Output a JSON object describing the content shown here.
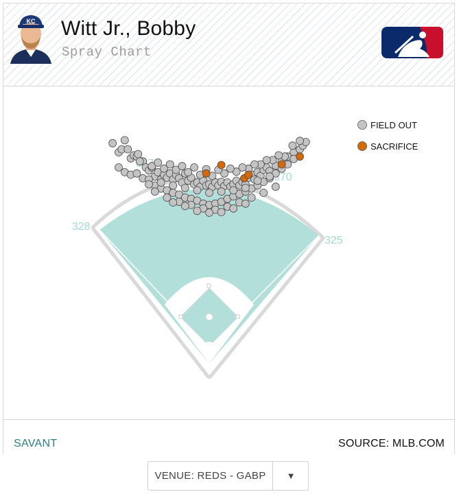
{
  "header": {
    "player_name": "Witt Jr., Bobby",
    "subtitle": "Spray Chart",
    "team_cap_letters": "KC"
  },
  "footer": {
    "left_link": "SAVANT",
    "source": "SOURCE: MLB.COM"
  },
  "venue_select": {
    "value": "VENUE: REDS - GABP",
    "arrow": "▼"
  },
  "colors": {
    "field": "#b3dfda",
    "field_out": "#c4c4c4",
    "sacrifice": "#d4690a",
    "accent": "#2c7f86"
  },
  "icons": [
    "player-headshot-icon",
    "mlb-logo-icon",
    "dropdown-arrow-icon"
  ],
  "chart_data": {
    "type": "scatter",
    "title": "Spray Chart",
    "legend_position": "top-right",
    "grid": false,
    "distance_labels": [
      "328",
      "387",
      "370",
      "325"
    ],
    "legend": [
      {
        "key": "field_out",
        "label": "FIELD OUT",
        "color": "#c4c4c4"
      },
      {
        "key": "sacrifice",
        "label": "SACRIFICE",
        "color": "#d4690a"
      }
    ],
    "series": [
      {
        "name": "FIELD OUT",
        "key": "field_out",
        "points": [
          [
            -160,
            340
          ],
          [
            -150,
            325
          ],
          [
            -145,
            330
          ],
          [
            -140,
            345
          ],
          [
            -130,
            315
          ],
          [
            -125,
            320
          ],
          [
            -120,
            318
          ],
          [
            -110,
            310
          ],
          [
            -105,
            300
          ],
          [
            -100,
            295
          ],
          [
            -95,
            300
          ],
          [
            -90,
            285
          ],
          [
            -85,
            292
          ],
          [
            -80,
            280
          ],
          [
            -75,
            288
          ],
          [
            -70,
            283
          ],
          [
            -65,
            290
          ],
          [
            -60,
            280
          ],
          [
            -55,
            288
          ],
          [
            -50,
            282
          ],
          [
            -45,
            275
          ],
          [
            -40,
            290
          ],
          [
            -35,
            278
          ],
          [
            -30,
            283
          ],
          [
            -25,
            272
          ],
          [
            -20,
            275
          ],
          [
            -15,
            268
          ],
          [
            -10,
            278
          ],
          [
            -5,
            270
          ],
          [
            0,
            272
          ],
          [
            5,
            268
          ],
          [
            10,
            275
          ],
          [
            15,
            270
          ],
          [
            20,
            276
          ],
          [
            25,
            269
          ],
          [
            30,
            275
          ],
          [
            35,
            268
          ],
          [
            40,
            272
          ],
          [
            45,
            278
          ],
          [
            50,
            270
          ],
          [
            55,
            276
          ],
          [
            60,
            272
          ],
          [
            65,
            283
          ],
          [
            70,
            288
          ],
          [
            75,
            280
          ],
          [
            80,
            292
          ],
          [
            85,
            286
          ],
          [
            90,
            296
          ],
          [
            95,
            300
          ],
          [
            100,
            294
          ],
          [
            110,
            303
          ],
          [
            120,
            312
          ],
          [
            130,
            318
          ],
          [
            140,
            325
          ],
          [
            150,
            330
          ],
          [
            155,
            336
          ],
          [
            160,
            342
          ],
          [
            -150,
            300
          ],
          [
            -140,
            292
          ],
          [
            -130,
            288
          ],
          [
            -120,
            290
          ],
          [
            -110,
            282
          ],
          [
            -100,
            280
          ],
          [
            -90,
            270
          ],
          [
            -80,
            265
          ],
          [
            -70,
            262
          ],
          [
            -60,
            258
          ],
          [
            -50,
            255
          ],
          [
            -40,
            250
          ],
          [
            -30,
            248
          ],
          [
            -20,
            245
          ],
          [
            -10,
            240
          ],
          [
            0,
            238
          ],
          [
            10,
            240
          ],
          [
            20,
            243
          ],
          [
            30,
            248
          ],
          [
            40,
            252
          ],
          [
            50,
            256
          ],
          [
            60,
            260
          ],
          [
            70,
            265
          ],
          [
            80,
            270
          ],
          [
            90,
            276
          ],
          [
            100,
            282
          ],
          [
            110,
            290
          ],
          [
            120,
            298
          ],
          [
            130,
            305
          ],
          [
            140,
            314
          ],
          [
            -115,
            310
          ],
          [
            -95,
            302
          ],
          [
            -75,
            298
          ],
          [
            -55,
            296
          ],
          [
            -35,
            292
          ],
          [
            -15,
            288
          ],
          [
            5,
            286
          ],
          [
            25,
            290
          ],
          [
            45,
            293
          ],
          [
            65,
            298
          ],
          [
            85,
            305
          ],
          [
            105,
            312
          ],
          [
            125,
            318
          ],
          [
            -135,
            330
          ],
          [
            -118,
            322
          ],
          [
            138,
            336
          ],
          [
            150,
            344
          ],
          [
            -90,
            260
          ],
          [
            -70,
            250
          ],
          [
            -50,
            243
          ],
          [
            -30,
            238
          ],
          [
            -10,
            232
          ],
          [
            10,
            230
          ],
          [
            30,
            235
          ],
          [
            50,
            242
          ],
          [
            70,
            250
          ],
          [
            90,
            258
          ],
          [
            110,
            268
          ],
          [
            -85,
            308
          ],
          [
            -65,
            305
          ],
          [
            -45,
            302
          ],
          [
            -25,
            300
          ],
          [
            -5,
            297
          ],
          [
            15,
            296
          ],
          [
            35,
            298
          ],
          [
            55,
            300
          ],
          [
            75,
            305
          ],
          [
            95,
            312
          ],
          [
            115,
            320
          ],
          [
            -100,
            272
          ],
          [
            -80,
            275
          ],
          [
            -60,
            270
          ],
          [
            -40,
            266
          ],
          [
            -20,
            262
          ],
          [
            0,
            258
          ],
          [
            20,
            260
          ],
          [
            40,
            262
          ],
          [
            60,
            266
          ],
          [
            80,
            278
          ],
          [
            100,
            285
          ],
          [
            -60,
            242
          ],
          [
            -40,
            236
          ],
          [
            -20,
            228
          ],
          [
            0,
            225
          ],
          [
            20,
            226
          ],
          [
            40,
            232
          ],
          [
            60,
            240
          ]
        ]
      },
      {
        "name": "SACRIFICE",
        "key": "sacrifice",
        "points": [
          [
            -5,
            290
          ],
          [
            20,
            304
          ],
          [
            58,
            282
          ],
          [
            65,
            288
          ],
          [
            120,
            305
          ],
          [
            150,
            318
          ]
        ]
      }
    ]
  }
}
